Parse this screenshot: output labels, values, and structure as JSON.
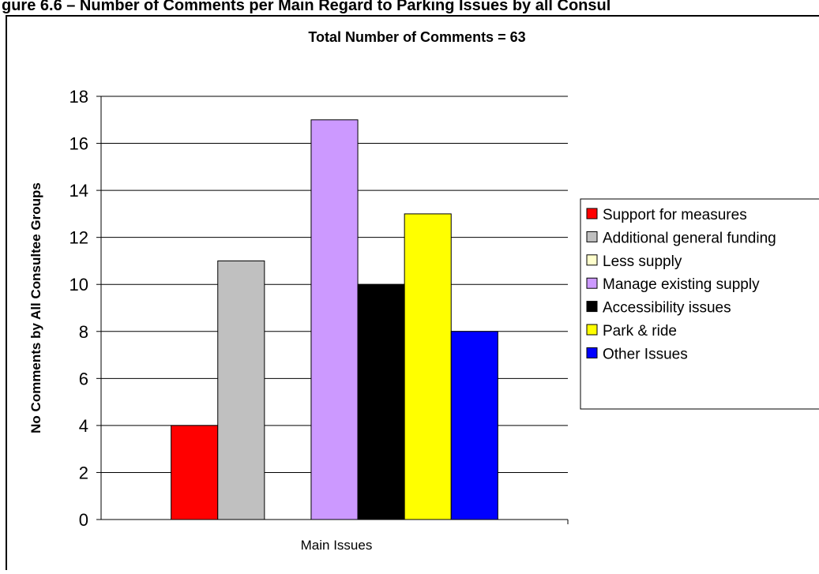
{
  "page": {
    "heading": "gure 6.6 – Number of Comments per Main Regard to Parking Issues by all Consul"
  },
  "chart_data": {
    "type": "bar",
    "title": "Total Number of Comments = 63",
    "xlabel": "Main Issues",
    "ylabel": "No Comments by All Consultee Groups",
    "ylim": [
      0,
      18
    ],
    "yticks": [
      0,
      2,
      4,
      6,
      8,
      10,
      12,
      14,
      16,
      18
    ],
    "grid": true,
    "legend_position": "right",
    "categories": [
      "Main Issues"
    ],
    "series": [
      {
        "name": "Support for measures",
        "values": [
          4
        ],
        "color": "#ff0000"
      },
      {
        "name": "Additional general funding",
        "values": [
          11
        ],
        "color": "#c0c0c0"
      },
      {
        "name": "Less supply",
        "values": [
          0
        ],
        "color": "#ffffcc"
      },
      {
        "name": "Manage existing supply",
        "values": [
          17
        ],
        "color": "#cc99ff"
      },
      {
        "name": "Accessibility issues",
        "values": [
          10
        ],
        "color": "#000000"
      },
      {
        "name": "Park & ride",
        "values": [
          13
        ],
        "color": "#ffff00"
      },
      {
        "name": "Other Issues",
        "values": [
          8
        ],
        "color": "#0000ff"
      }
    ]
  }
}
